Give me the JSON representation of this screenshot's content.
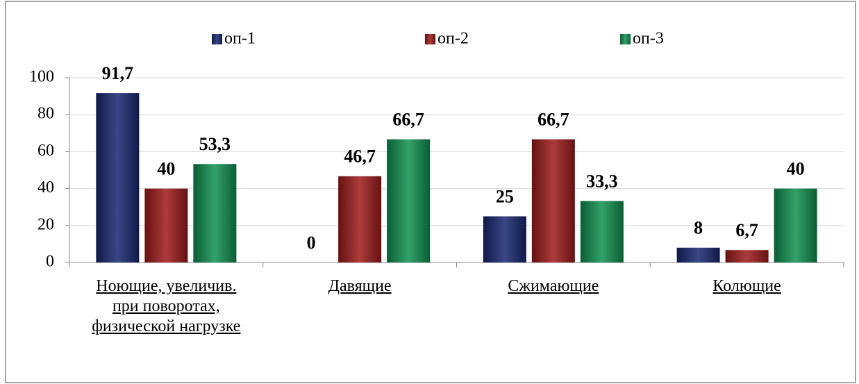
{
  "chart_data": {
    "type": "bar",
    "categories": [
      "Ноющие, увеличив. при поворотах, физической нагрузке",
      "Давящие",
      "Сжимающие",
      "Колющие"
    ],
    "series": [
      {
        "name": "оп-1",
        "color": "#17276f",
        "values": [
          91.7,
          0,
          25,
          8
        ],
        "value_labels": [
          "91,7",
          "0",
          "25",
          "8"
        ]
      },
      {
        "name": "оп-2",
        "color": "#9e1a1a",
        "values": [
          40,
          46.7,
          66.7,
          6.7
        ],
        "value_labels": [
          "40",
          "46,7",
          "66,7",
          "6,7"
        ]
      },
      {
        "name": "оп-3",
        "color": "#0f9050",
        "values": [
          53.3,
          66.7,
          33.3,
          40
        ],
        "value_labels": [
          "53,3",
          "66,7",
          "33,3",
          "40"
        ]
      }
    ],
    "ylim": [
      0,
      100
    ],
    "yticks": [
      0,
      20,
      40,
      60,
      80,
      100
    ],
    "grid": true,
    "legend": "top"
  }
}
